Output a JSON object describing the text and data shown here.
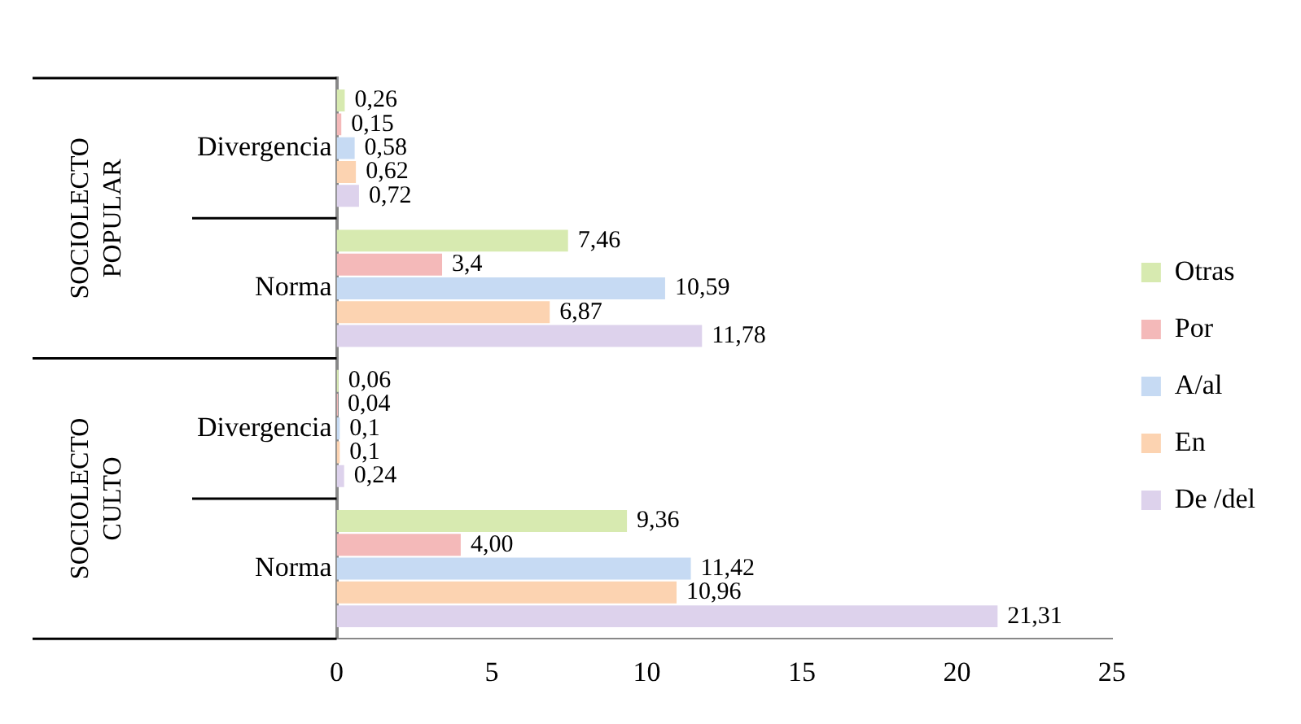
{
  "chart_data": {
    "type": "bar",
    "orientation": "horizontal",
    "categories": [
      "Divergencia",
      "Norma",
      "Divergencia",
      "Norma"
    ],
    "series": [
      {
        "name": "Otras",
        "color": "#d7eab0",
        "values": [
          0.26,
          7.46,
          0.06,
          9.36
        ],
        "value_labels": [
          "0,26",
          "7,46",
          "0,06",
          "9,36"
        ]
      },
      {
        "name": "Por",
        "color": "#f4b9b9",
        "values": [
          0.15,
          3.4,
          0.04,
          4.0
        ],
        "value_labels": [
          "0,15",
          "3,4",
          "0,04",
          "4,00"
        ]
      },
      {
        "name": "A/al",
        "color": "#c6daf3",
        "values": [
          0.58,
          10.59,
          0.1,
          11.42
        ],
        "value_labels": [
          "0,58",
          "10,59",
          "0,1",
          "11,42"
        ]
      },
      {
        "name": "En",
        "color": "#fcd3b1",
        "values": [
          0.62,
          6.87,
          0.1,
          10.96
        ],
        "value_labels": [
          "0,62",
          "6,87",
          "0,1",
          "10,96"
        ]
      },
      {
        "name": "De /del",
        "color": "#ddd2ec",
        "values": [
          0.72,
          11.78,
          0.24,
          21.31
        ],
        "value_labels": [
          "0,72",
          "11,78",
          "0,24",
          "21,31"
        ]
      }
    ],
    "xlim": [
      0,
      25
    ],
    "xticks": [
      0,
      5,
      10,
      15,
      20,
      25
    ],
    "grid": false,
    "legend": "right",
    "annotations": [
      "SOCIOLECTO POPULAR",
      "SOCIOLECTO CULTO"
    ]
  }
}
